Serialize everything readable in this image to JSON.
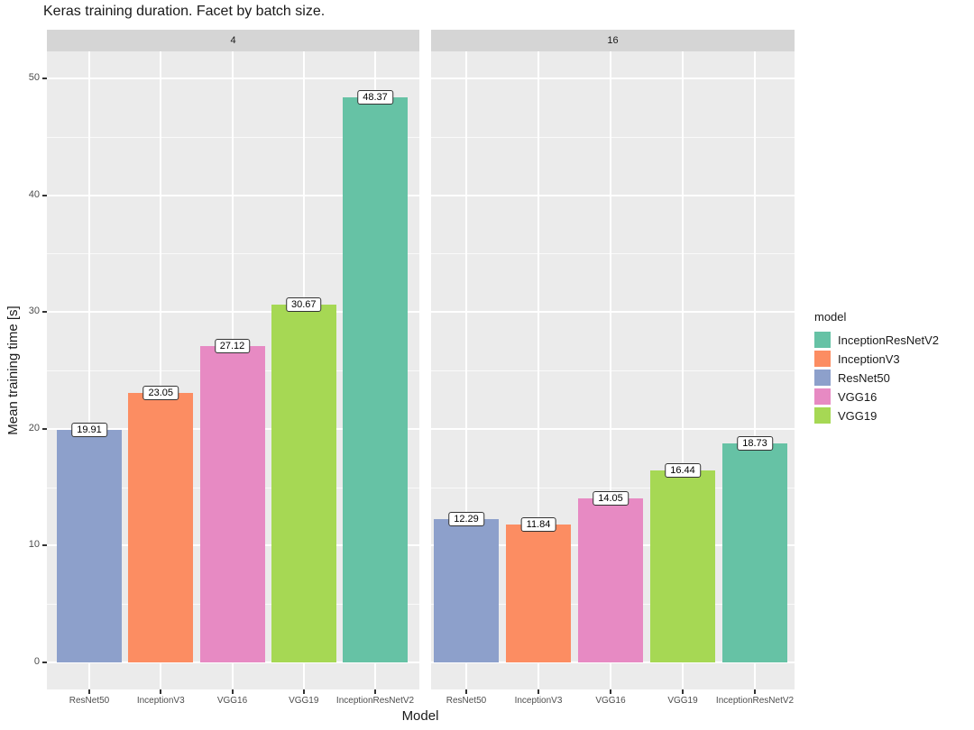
{
  "chart_data": {
    "type": "bar",
    "title": "Keras training duration. Facet by batch size.",
    "xlabel": "Model",
    "ylabel": "Mean training time [s]",
    "facet_variable": "batch size",
    "categories": [
      "ResNet50",
      "InceptionV3",
      "VGG16",
      "VGG19",
      "InceptionResNetV2"
    ],
    "facets": [
      {
        "label": "4",
        "values": [
          19.91,
          23.05,
          27.12,
          30.67,
          48.37
        ]
      },
      {
        "label": "16",
        "values": [
          12.29,
          11.84,
          14.05,
          16.44,
          18.73
        ]
      }
    ],
    "value_labels": [
      "19.91",
      "23.05",
      "27.12",
      "30.67",
      "48.37",
      "12.29",
      "11.84",
      "14.05",
      "16.44",
      "18.73"
    ],
    "yticks": [
      0,
      10,
      20,
      30,
      40,
      50
    ],
    "ylim": [
      0,
      52.3
    ],
    "grid": true,
    "legend": {
      "title": "model",
      "position": "right",
      "entries": [
        {
          "label": "InceptionResNetV2",
          "color": "#66c2a5"
        },
        {
          "label": "InceptionV3",
          "color": "#fc8d62"
        },
        {
          "label": "ResNet50",
          "color": "#8da0cb"
        },
        {
          "label": "VGG16",
          "color": "#e78ac3"
        },
        {
          "label": "VGG19",
          "color": "#a6d854"
        }
      ]
    },
    "colors": {
      "InceptionResNetV2": "#66c2a5",
      "InceptionV3": "#fc8d62",
      "ResNet50": "#8da0cb",
      "VGG16": "#e78ac3",
      "VGG19": "#a6d854"
    },
    "theme": {
      "panel_bg": "#ebebeb",
      "strip_bg": "#d5d5d5",
      "grid_color": "#ffffff",
      "axis_text_color": "#4d4d4d",
      "text_color": "#1a1a1a"
    }
  }
}
